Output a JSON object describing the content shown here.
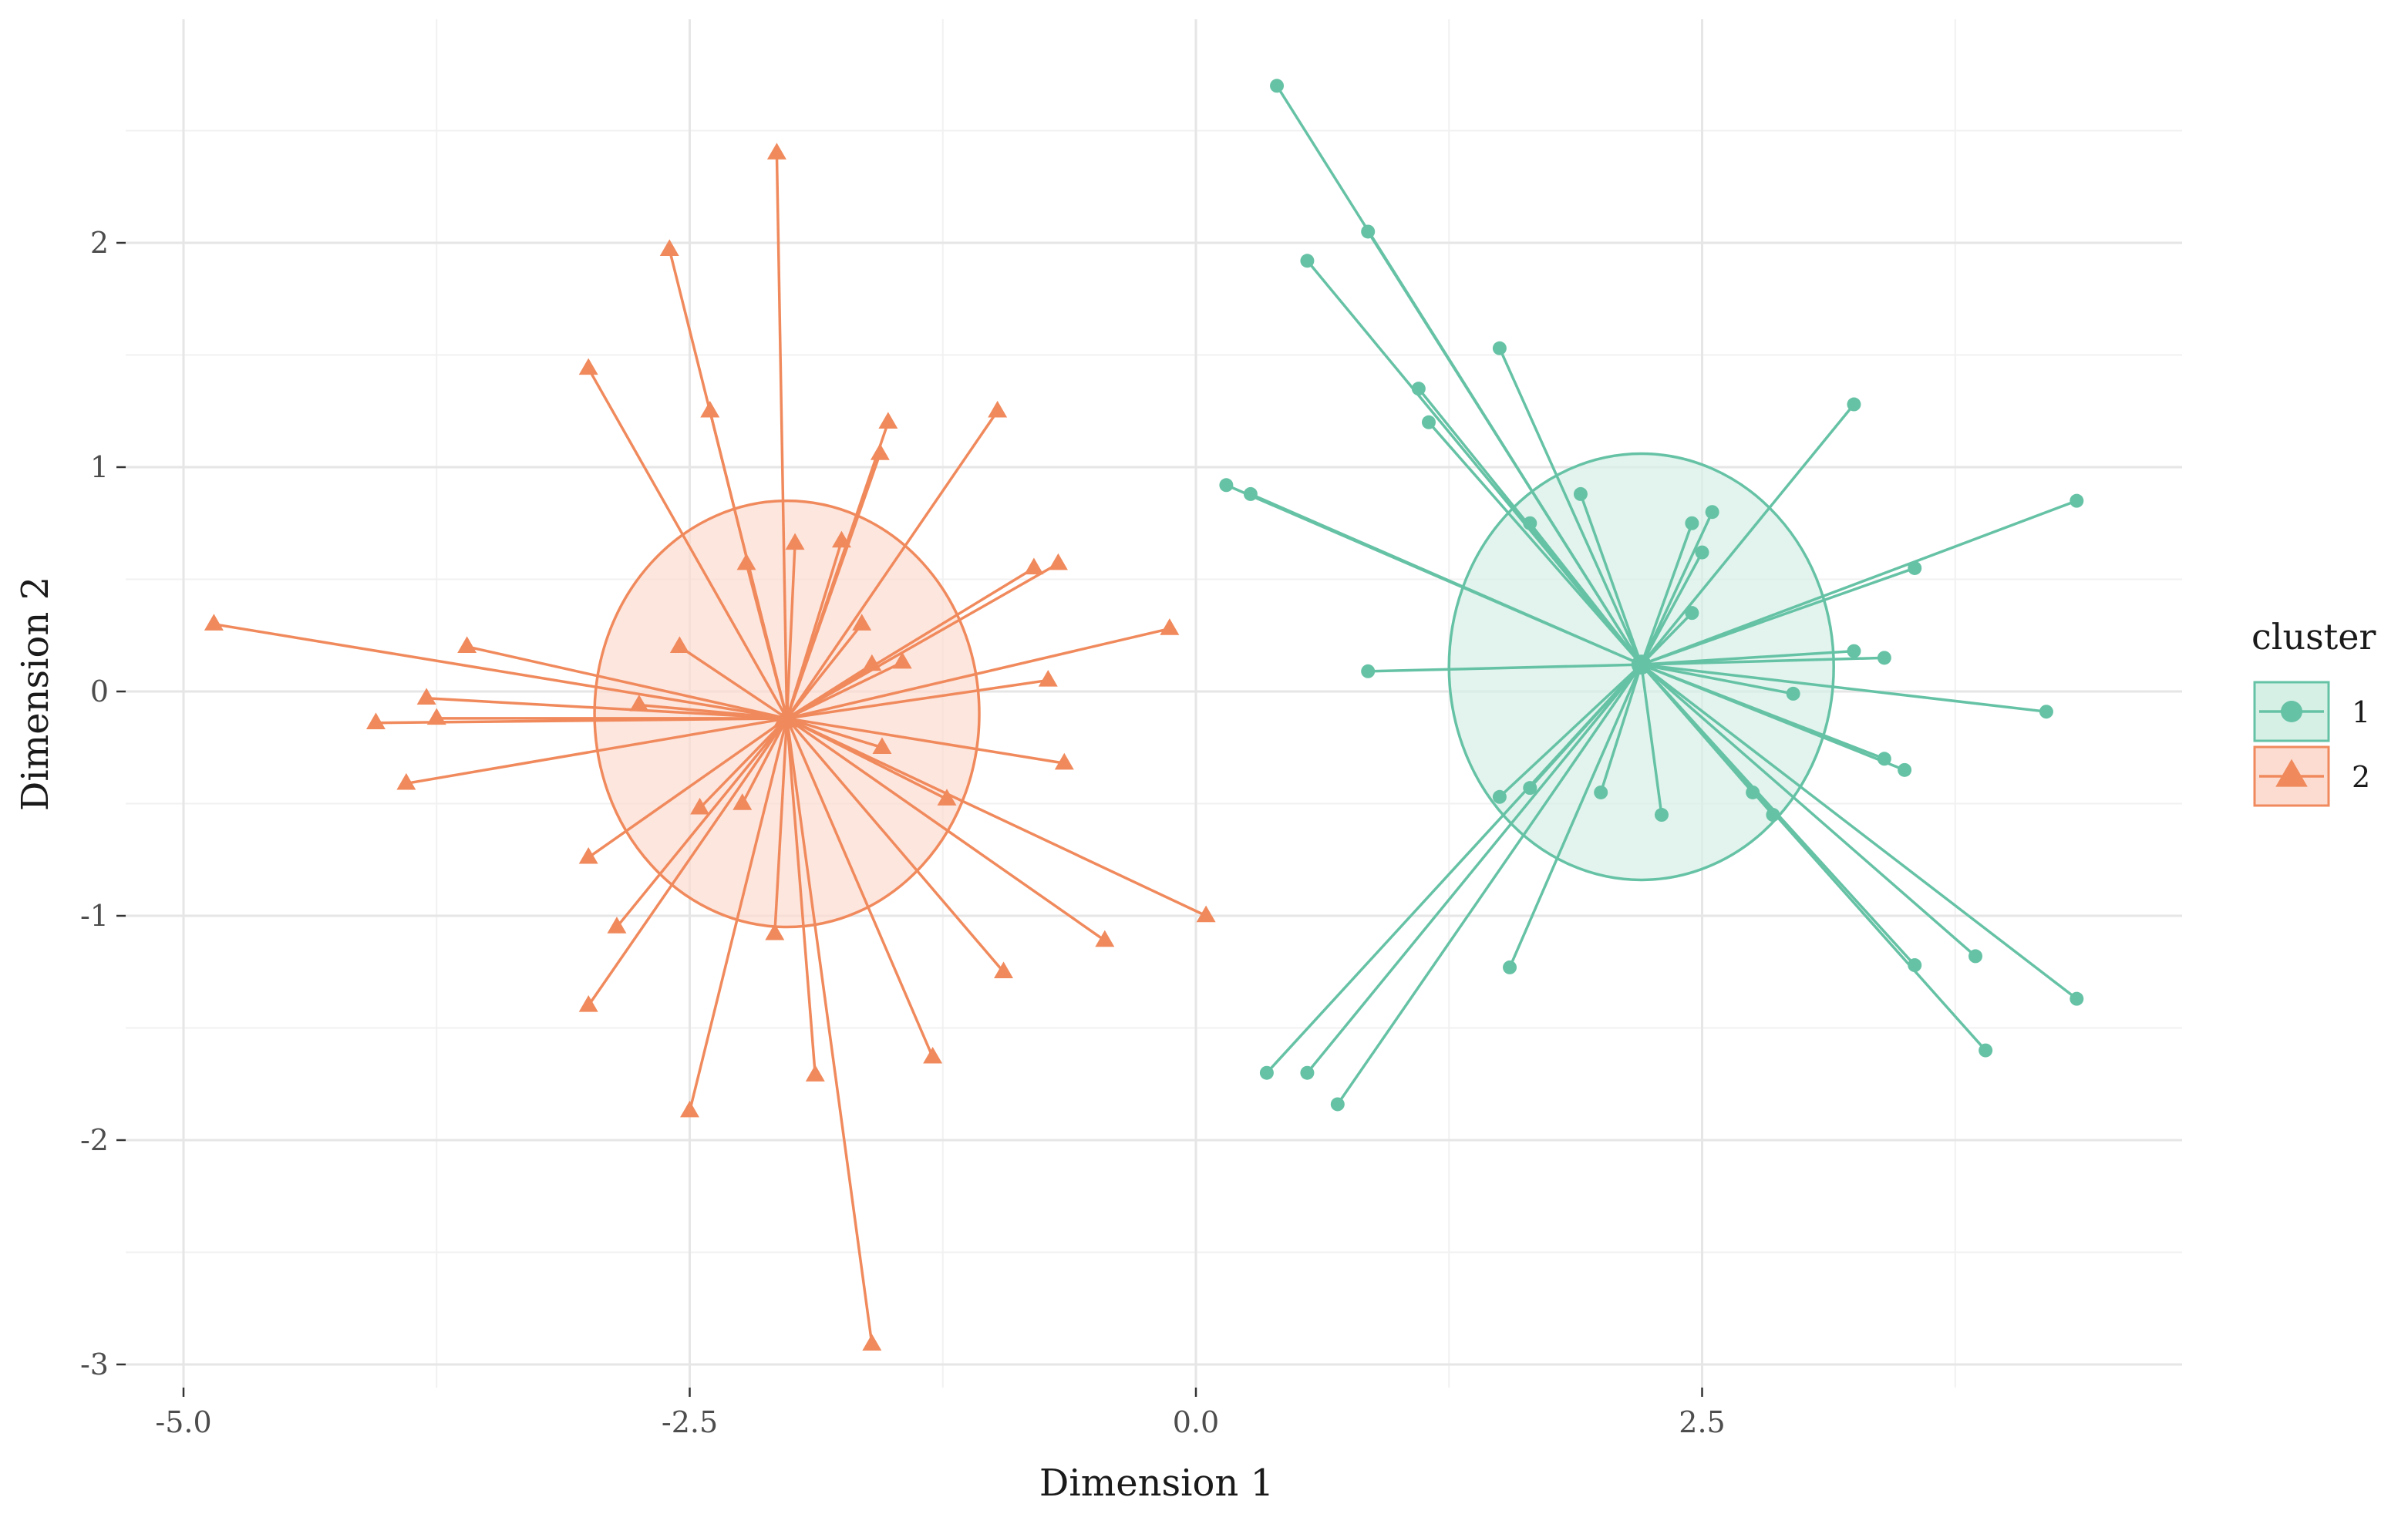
{
  "chart_data": {
    "type": "scatter",
    "subtype": "cluster-plot-with-ellipses",
    "title": "",
    "xlabel": "Dimension 1",
    "ylabel": "Dimension 2",
    "xlim": [
      -5.0,
      4.8
    ],
    "ylim": [
      -3.1,
      2.75
    ],
    "xticks": [
      -5.0,
      -2.5,
      0.0,
      2.5
    ],
    "xtick_labels": [
      "-5.0",
      "-2.5",
      "0.0",
      "2.5"
    ],
    "yticks": [
      -3,
      -2,
      -1,
      0,
      1,
      2
    ],
    "ytick_labels": [
      "-3",
      "-2",
      "-1",
      "0",
      "1",
      "2"
    ],
    "grid": true,
    "legend": {
      "title": "cluster",
      "position": "right",
      "entries": [
        {
          "label": "1",
          "marker": "circle",
          "color": "#66c2a5",
          "fill": "#d6f0e6"
        },
        {
          "label": "2",
          "marker": "triangle",
          "color": "#f08a5d",
          "fill": "#fcdcd0"
        }
      ]
    },
    "series": [
      {
        "name": "1",
        "color": "#66c2a5",
        "marker": "circle",
        "centroid": {
          "x": 2.2,
          "y": 0.12
        },
        "ellipse": {
          "cx": 2.2,
          "cy": 0.11,
          "rx": 0.95,
          "ry": 0.95
        },
        "points": [
          {
            "x": 0.4,
            "y": 2.7
          },
          {
            "x": 0.85,
            "y": 2.05
          },
          {
            "x": 0.55,
            "y": 1.92
          },
          {
            "x": 1.1,
            "y": 1.35
          },
          {
            "x": 1.15,
            "y": 1.2
          },
          {
            "x": 1.5,
            "y": 1.53
          },
          {
            "x": 0.15,
            "y": 0.92
          },
          {
            "x": 0.27,
            "y": 0.88
          },
          {
            "x": 1.65,
            "y": 0.75
          },
          {
            "x": 1.9,
            "y": 0.88
          },
          {
            "x": 3.25,
            "y": 1.28
          },
          {
            "x": 4.35,
            "y": 0.85
          },
          {
            "x": 3.55,
            "y": 0.55
          },
          {
            "x": 2.55,
            "y": 0.8
          },
          {
            "x": 2.45,
            "y": 0.75
          },
          {
            "x": 2.5,
            "y": 0.62
          },
          {
            "x": 2.45,
            "y": 0.35
          },
          {
            "x": 0.85,
            "y": 0.09
          },
          {
            "x": 3.25,
            "y": 0.18
          },
          {
            "x": 3.4,
            "y": 0.15
          },
          {
            "x": 2.95,
            "y": -0.01
          },
          {
            "x": 4.2,
            "y": -0.09
          },
          {
            "x": 3.4,
            "y": -0.3
          },
          {
            "x": 3.5,
            "y": -0.35
          },
          {
            "x": 1.5,
            "y": -0.47
          },
          {
            "x": 1.65,
            "y": -0.43
          },
          {
            "x": 2.0,
            "y": -0.45
          },
          {
            "x": 2.3,
            "y": -0.55
          },
          {
            "x": 2.75,
            "y": -0.45
          },
          {
            "x": 2.85,
            "y": -0.55
          },
          {
            "x": 1.55,
            "y": -1.23
          },
          {
            "x": 3.55,
            "y": -1.22
          },
          {
            "x": 3.85,
            "y": -1.18
          },
          {
            "x": 4.35,
            "y": -1.37
          },
          {
            "x": 3.9,
            "y": -1.6
          },
          {
            "x": 0.35,
            "y": -1.7
          },
          {
            "x": 0.55,
            "y": -1.7
          },
          {
            "x": 0.7,
            "y": -1.84
          }
        ]
      },
      {
        "name": "2",
        "color": "#f08a5d",
        "marker": "triangle",
        "centroid": {
          "x": -2.02,
          "y": -0.12
        },
        "ellipse": {
          "cx": -2.02,
          "cy": -0.1,
          "rx": 0.95,
          "ry": 0.95
        },
        "points": [
          {
            "x": -2.07,
            "y": 2.4
          },
          {
            "x": -2.6,
            "y": 1.97
          },
          {
            "x": -3.0,
            "y": 1.44
          },
          {
            "x": -2.4,
            "y": 1.25
          },
          {
            "x": -1.52,
            "y": 1.2
          },
          {
            "x": -1.56,
            "y": 1.06
          },
          {
            "x": -0.98,
            "y": 1.25
          },
          {
            "x": -2.22,
            "y": 0.57
          },
          {
            "x": -1.98,
            "y": 0.66
          },
          {
            "x": -1.75,
            "y": 0.67
          },
          {
            "x": -0.8,
            "y": 0.55
          },
          {
            "x": -0.68,
            "y": 0.57
          },
          {
            "x": -4.85,
            "y": 0.3
          },
          {
            "x": -3.6,
            "y": 0.2
          },
          {
            "x": -2.55,
            "y": 0.2
          },
          {
            "x": -1.65,
            "y": 0.3
          },
          {
            "x": -1.6,
            "y": 0.12
          },
          {
            "x": -1.45,
            "y": 0.13
          },
          {
            "x": -0.13,
            "y": 0.28
          },
          {
            "x": -0.73,
            "y": 0.05
          },
          {
            "x": -3.8,
            "y": -0.03
          },
          {
            "x": -4.05,
            "y": -0.14
          },
          {
            "x": -3.75,
            "y": -0.12
          },
          {
            "x": -2.75,
            "y": -0.06
          },
          {
            "x": -3.9,
            "y": -0.41
          },
          {
            "x": -1.55,
            "y": -0.25
          },
          {
            "x": -0.65,
            "y": -0.32
          },
          {
            "x": -1.23,
            "y": -0.48
          },
          {
            "x": -2.45,
            "y": -0.52
          },
          {
            "x": -2.24,
            "y": -0.5
          },
          {
            "x": -3.0,
            "y": -0.74
          },
          {
            "x": -2.86,
            "y": -1.05
          },
          {
            "x": -2.08,
            "y": -1.08
          },
          {
            "x": -0.45,
            "y": -1.11
          },
          {
            "x": 0.05,
            "y": -1.0
          },
          {
            "x": -0.95,
            "y": -1.25
          },
          {
            "x": -3.0,
            "y": -1.4
          },
          {
            "x": -1.3,
            "y": -1.63
          },
          {
            "x": -1.88,
            "y": -1.71
          },
          {
            "x": -2.5,
            "y": -1.87
          },
          {
            "x": -1.6,
            "y": -2.91
          }
        ]
      }
    ]
  }
}
